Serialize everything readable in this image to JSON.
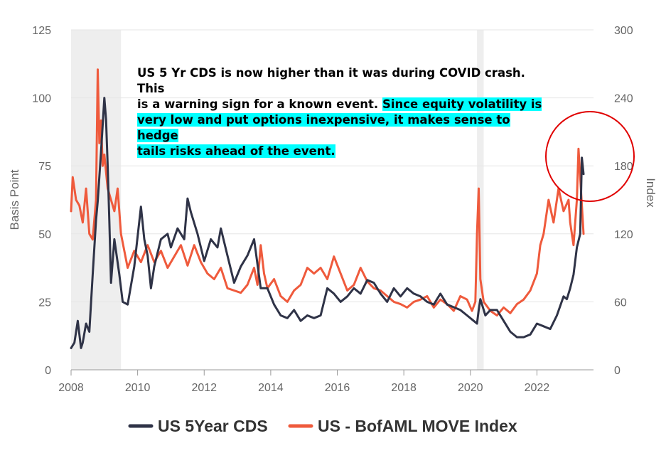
{
  "chart_data": {
    "type": "line",
    "title": "",
    "xlabel": "",
    "ylabel": "Basis Point",
    "y2label": "Index",
    "xlim": [
      2008,
      2023.7
    ],
    "ylim": [
      0,
      125
    ],
    "y2lim": [
      0,
      300
    ],
    "x_ticks": [
      "2008",
      "2010",
      "2012",
      "2014",
      "2016",
      "2018",
      "2020",
      "2022"
    ],
    "y_ticks": [
      "0",
      "25",
      "50",
      "75",
      "100",
      "125"
    ],
    "y2_ticks": [
      "0",
      "60",
      "120",
      "180",
      "240",
      "300"
    ],
    "grid": true,
    "legend_position": "bottom",
    "shaded_periods": [
      [
        2008.0,
        2009.5
      ],
      [
        2020.2,
        2020.4
      ]
    ],
    "colors": {
      "cds": "#2f3347",
      "move": "#ef5a3c",
      "shade": "#eeeeee",
      "highlight": "#00ffff",
      "circle": "#e00000"
    },
    "annotation": {
      "line1": "US 5 Yr CDS is now higher than it was during COVID crash. This",
      "line2_plain": "is a warning sign for a known event. ",
      "line2_highlight": "Since equity volatility is",
      "line3": "very low and put options inexpensive, it makes sense to hedge",
      "line4": "tails risks ahead of the event."
    },
    "series": [
      {
        "name": "US 5Year CDS",
        "axis": "left",
        "x": [
          2008.0,
          2008.1,
          2008.2,
          2008.3,
          2008.35,
          2008.45,
          2008.55,
          2008.65,
          2008.75,
          2008.8,
          2008.9,
          2009.0,
          2009.05,
          2009.1,
          2009.15,
          2009.2,
          2009.3,
          2009.45,
          2009.55,
          2009.7,
          2009.9,
          2010.1,
          2010.2,
          2010.3,
          2010.4,
          2010.5,
          2010.7,
          2010.9,
          2011.0,
          2011.2,
          2011.4,
          2011.5,
          2011.6,
          2011.8,
          2012.0,
          2012.2,
          2012.4,
          2012.5,
          2012.7,
          2012.9,
          2013.1,
          2013.3,
          2013.5,
          2013.7,
          2013.9,
          2014.1,
          2014.3,
          2014.5,
          2014.7,
          2014.9,
          2015.1,
          2015.3,
          2015.5,
          2015.7,
          2015.9,
          2016.1,
          2016.3,
          2016.5,
          2016.7,
          2016.9,
          2017.1,
          2017.3,
          2017.5,
          2017.7,
          2017.9,
          2018.1,
          2018.3,
          2018.5,
          2018.7,
          2018.9,
          2019.1,
          2019.3,
          2019.5,
          2019.7,
          2019.9,
          2020.1,
          2020.2,
          2020.25,
          2020.3,
          2020.35,
          2020.45,
          2020.6,
          2020.8,
          2021.0,
          2021.2,
          2021.4,
          2021.6,
          2021.8,
          2022.0,
          2022.2,
          2022.4,
          2022.6,
          2022.8,
          2022.9,
          2023.0,
          2023.1,
          2023.2,
          2023.3,
          2023.35,
          2023.4
        ],
        "values": [
          8,
          10,
          18,
          8,
          10,
          17,
          14,
          35,
          55,
          62,
          80,
          100,
          92,
          75,
          55,
          32,
          48,
          35,
          25,
          24,
          38,
          60,
          48,
          42,
          30,
          38,
          48,
          50,
          45,
          52,
          48,
          63,
          58,
          50,
          40,
          48,
          45,
          52,
          42,
          32,
          38,
          42,
          48,
          30,
          30,
          24,
          20,
          19,
          22,
          18,
          20,
          19,
          20,
          30,
          28,
          25,
          27,
          30,
          28,
          33,
          32,
          28,
          25,
          30,
          27,
          30,
          28,
          27,
          25,
          24,
          28,
          24,
          23,
          22,
          20,
          18,
          17,
          22,
          26,
          24,
          20,
          22,
          22,
          18,
          14,
          12,
          12,
          13,
          17,
          16,
          15,
          20,
          27,
          26,
          30,
          35,
          45,
          50,
          78,
          72
        ]
      },
      {
        "name": "US - BofAML MOVE Index",
        "axis": "right",
        "x": [
          2008.0,
          2008.05,
          2008.15,
          2008.25,
          2008.35,
          2008.45,
          2008.55,
          2008.65,
          2008.75,
          2008.8,
          2008.85,
          2008.9,
          2008.95,
          2009.0,
          2009.1,
          2009.2,
          2009.3,
          2009.4,
          2009.5,
          2009.7,
          2009.9,
          2010.1,
          2010.3,
          2010.5,
          2010.7,
          2010.9,
          2011.1,
          2011.3,
          2011.5,
          2011.7,
          2011.9,
          2012.1,
          2012.3,
          2012.5,
          2012.7,
          2012.9,
          2013.1,
          2013.3,
          2013.5,
          2013.6,
          2013.7,
          2013.8,
          2013.9,
          2014.1,
          2014.3,
          2014.5,
          2014.7,
          2014.9,
          2015.1,
          2015.3,
          2015.5,
          2015.7,
          2015.9,
          2016.1,
          2016.3,
          2016.5,
          2016.7,
          2016.9,
          2017.1,
          2017.3,
          2017.5,
          2017.7,
          2017.9,
          2018.1,
          2018.3,
          2018.5,
          2018.7,
          2018.9,
          2019.1,
          2019.3,
          2019.5,
          2019.7,
          2019.9,
          2020.05,
          2020.15,
          2020.2,
          2020.25,
          2020.3,
          2020.4,
          2020.6,
          2020.8,
          2021.0,
          2021.2,
          2021.4,
          2021.6,
          2021.8,
          2022.0,
          2022.1,
          2022.2,
          2022.35,
          2022.5,
          2022.65,
          2022.8,
          2022.95,
          2023.0,
          2023.1,
          2023.2,
          2023.25,
          2023.3,
          2023.4
        ],
        "values": [
          140,
          170,
          150,
          145,
          130,
          160,
          120,
          115,
          150,
          265,
          200,
          220,
          180,
          190,
          160,
          150,
          140,
          160,
          120,
          90,
          105,
          95,
          110,
          95,
          105,
          90,
          100,
          110,
          92,
          110,
          95,
          85,
          80,
          90,
          72,
          70,
          68,
          75,
          90,
          75,
          110,
          85,
          72,
          80,
          65,
          60,
          70,
          75,
          90,
          85,
          90,
          80,
          100,
          85,
          70,
          75,
          90,
          78,
          72,
          70,
          65,
          60,
          58,
          55,
          60,
          62,
          65,
          55,
          62,
          58,
          52,
          65,
          62,
          52,
          60,
          120,
          160,
          80,
          60,
          52,
          48,
          55,
          50,
          58,
          62,
          70,
          85,
          110,
          120,
          150,
          130,
          160,
          140,
          150,
          130,
          110,
          150,
          195,
          170,
          120
        ]
      }
    ]
  }
}
